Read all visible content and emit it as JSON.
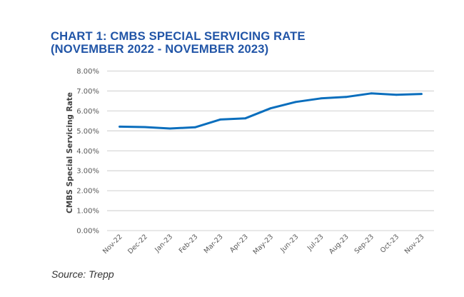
{
  "title": {
    "line1": "CHART 1: CMBS SPECIAL SERVICING RATE",
    "line2": "(NOVEMBER 2022 - NOVEMBER 2023)"
  },
  "source": "Source: Trepp",
  "colors": {
    "title": "#2155a7",
    "line": "#0a6ebd",
    "grid": "#d9d9d9",
    "tick_text": "#595959"
  },
  "chart_data": {
    "type": "line",
    "title": "CHART 1: CMBS SPECIAL SERVICING RATE (NOVEMBER 2022 - NOVEMBER 2023)",
    "xlabel": "",
    "ylabel": "CMBS Special Servicing Rate",
    "categories": [
      "Nov-22",
      "Dec-22",
      "Jan-23",
      "Feb-23",
      "Mar-23",
      "Apr-23",
      "May-23",
      "Jun-23",
      "Jul-23",
      "Aug-23",
      "Sep-23",
      "Oct-23",
      "Nov-23"
    ],
    "series": [
      {
        "name": "CMBS Special Servicing Rate",
        "values": [
          5.21,
          5.19,
          5.12,
          5.18,
          5.57,
          5.63,
          6.13,
          6.45,
          6.63,
          6.7,
          6.88,
          6.81,
          6.85
        ]
      }
    ],
    "ylim": [
      0,
      8
    ],
    "yticks": [
      0,
      1,
      2,
      3,
      4,
      5,
      6,
      7,
      8
    ],
    "ytick_labels": [
      "0.00%",
      "1.00%",
      "2.00%",
      "3.00%",
      "4.00%",
      "5.00%",
      "6.00%",
      "7.00%",
      "8.00%"
    ],
    "grid": true,
    "legend": "none"
  }
}
